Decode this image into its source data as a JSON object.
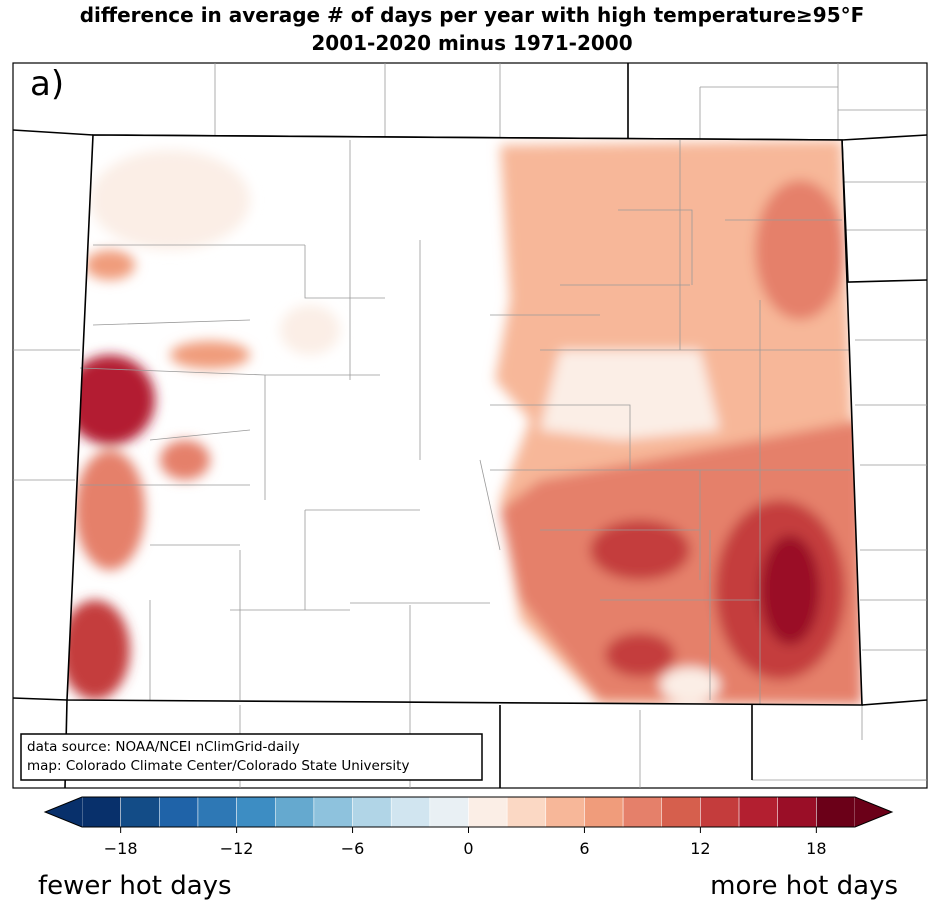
{
  "title": [
    "difference in average # of days per year with high temperature≥95°F",
    "2001-2020 minus 1971-2000"
  ],
  "panel_label": "a)",
  "source_box": [
    "data source: NOAA/NCEI nClimGrid-daily",
    "map: Colorado Climate Center/Colorado State University"
  ],
  "colorbar": {
    "levels": [
      -20,
      -18,
      -16,
      -14,
      -12,
      -10,
      -8,
      -6,
      -4,
      -2,
      0,
      2,
      4,
      6,
      8,
      10,
      12,
      14,
      16,
      18,
      20
    ],
    "colors": [
      "#08306b",
      "#134c87",
      "#1f63a8",
      "#2e78b5",
      "#3d8dc3",
      "#65a9cf",
      "#8ec2dd",
      "#b1d5e7",
      "#d1e5f0",
      "#e9f0f4",
      "#fbeee6",
      "#fbd8c4",
      "#f7b799",
      "#f09c7b",
      "#e5806a",
      "#d65f4d",
      "#c43c3c",
      "#b31f30",
      "#9a0e27",
      "#6b0018"
    ],
    "ticks": [
      -18,
      -12,
      -6,
      0,
      6,
      12,
      18
    ],
    "extend": "both"
  },
  "footer": {
    "left": "fewer hot days",
    "right": "more hot days"
  }
}
